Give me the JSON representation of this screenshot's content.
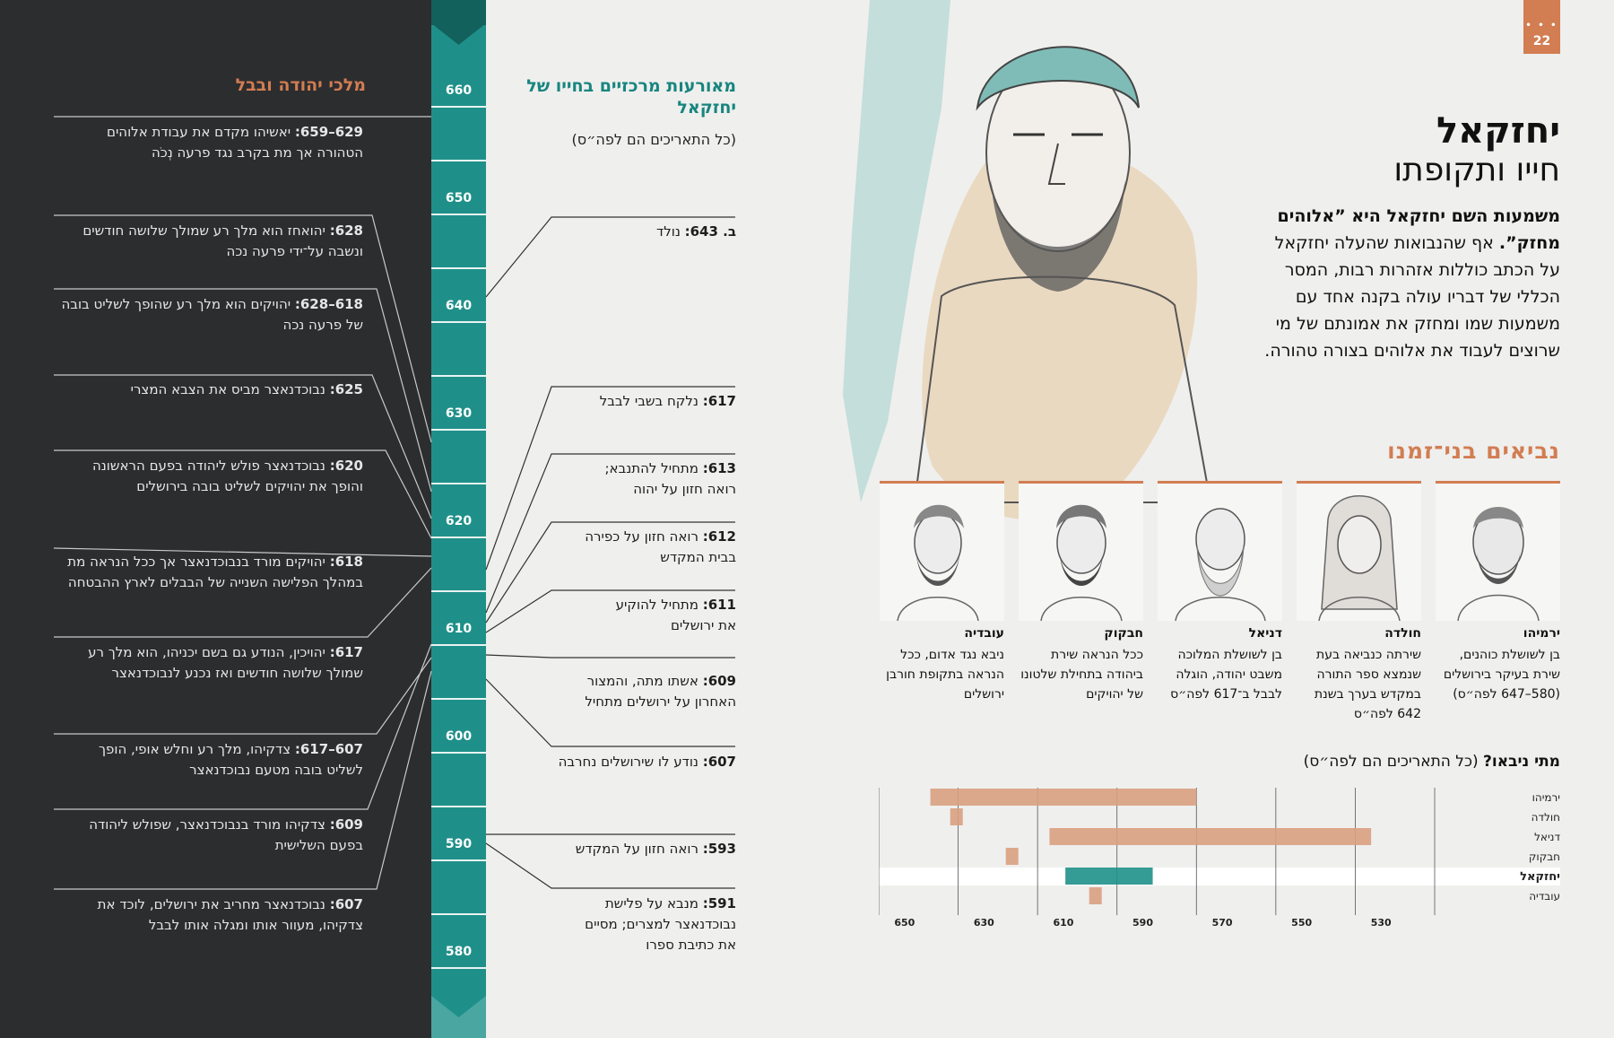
{
  "page_number": "22",
  "page_tab_dots": "• • •",
  "kings": {
    "title": "מלכי יהודה ובבל",
    "entries": [
      {
        "years": "629–659:",
        "text": " יאשיהו מקדם את עבודת אלוהים הטהורה אך מת בקרב נגד פרעה נְכֹה"
      },
      {
        "years": "628:",
        "text": " יהואחז הוא מלך רע שמולך שלושה חודשים ונשבה על־ידי פרעה נכה"
      },
      {
        "years": "618–628:",
        "text": " יהויקים הוא מלך רע שהופך לשליט בובה של פרעה נכה"
      },
      {
        "years": "625:",
        "text": " נבוכדנאצר מביס את הצבא המצרי"
      },
      {
        "years": "620:",
        "text": " נבוכדנאצר פולש ליהודה בפעם הראשונה והופך את יהויקים לשליט בובה בירושלים"
      },
      {
        "years": "618:",
        "text": " יהויקים מורד בנבוכדנאצר אך ככל הנראה מת במהלך הפלישה השנייה של הבבלים לארץ ההבטחה"
      },
      {
        "years": "617:",
        "text": " יהויכין, הנודע גם בשם יכניהו, הוא מלך רע שמולך שלושה חודשים ואז נכנע לנבוכדנאצר"
      },
      {
        "years": "607–617:",
        "text": " צדקיהו, מלך רע וחלש אופי, הופך לשליט בובה מטעם נבוכדנאצר"
      },
      {
        "years": "609:",
        "text": " צדקיהו מורד בנבוכדנאצר, שפולש ליהודה בפעם השלישית"
      },
      {
        "years": "607:",
        "text": " נבוכדנאצר מחריב את ירושלים, לוכד את צדקיהו, מעוור אותו ומגלה אותו לבבל"
      }
    ]
  },
  "timeline_ticks": [
    "660",
    "650",
    "640",
    "630",
    "620",
    "610",
    "600",
    "590",
    "580"
  ],
  "events": {
    "title": "מאורעות מרכזיים בחייו של יחזקאל",
    "note": "(כל התאריכים הם לפה״ס)",
    "entries": [
      {
        "years": "ב. 643:",
        "text": " נולד"
      },
      {
        "years": "617:",
        "text": " נלקח בשבי לבבל"
      },
      {
        "years": "613:",
        "text": " מתחיל להתנבא; רואה חזון על יהוה"
      },
      {
        "years": "612:",
        "text": " רואה חזון על כפירה בבית המקדש"
      },
      {
        "years": "611:",
        "text": " מתחיל להוקיע את ירושלים"
      },
      {
        "years": "609:",
        "text": " אשתו מתה, והמצור האחרון על ירושלים מתחיל"
      },
      {
        "years": "607:",
        "text": " נודע לו שירושלים נחרבה"
      },
      {
        "years": "593:",
        "text": " רואה חזון על המקדש"
      },
      {
        "years": "591:",
        "text": " מנבא על פלישת נבוכדנאצר למצרים; מסיים את כתיבת ספרו"
      }
    ]
  },
  "header": {
    "title": "יחזקאל",
    "subtitle": "חייו ותקופתו"
  },
  "intro": {
    "bold": "משמעות השם יחזקאל היא ”אלוהים מחזק”.",
    "text": " אף שהנבואות שהעלה יחזקאל על הכתב כוללות אזהרות רבות, המסר הכללי של דבריו עולה בקנה אחד עם משמעות שמו ומחזק את אמונתם של מי שרוצים לעבוד את אלוהים בצורה טהורה."
  },
  "prophets": {
    "title": "נביאים בני־זמנו",
    "cards": [
      {
        "name": "ירמיהו",
        "desc": "בן לשושלת כוהנים, שירת בעיקר בירושלים (580–647 לפה״ס)"
      },
      {
        "name": "חולדה",
        "desc": "שירתה כנביאה בעת שנמצא ספר התורה במקדש בערך בשנת 642 לפה״ס"
      },
      {
        "name": "דניאל",
        "desc": "בן לשושלת המלוכה משבט יהודה, הוגלה לבבל ב־617 לפה״ס"
      },
      {
        "name": "חבקוק",
        "desc": "ככל הנראה שירת ביהודה בתחילת שלטונו של יהויקים"
      },
      {
        "name": "עובדיה",
        "desc": "ניבא נגד אדום, ככל הנראה בתקופת חורבן ירושלים"
      }
    ]
  },
  "chart": {
    "title_bold": "מתי ניבאו?",
    "title_note": " (כל התאריכים הם לפה״ס)"
  },
  "chart_data": {
    "type": "bar",
    "orientation": "horizontal",
    "xlim": [
      660,
      520
    ],
    "xticks": [
      530,
      550,
      570,
      590,
      610,
      630,
      650
    ],
    "rows": [
      {
        "name": "ירמיהו",
        "start": 647,
        "end": 580,
        "highlight": false
      },
      {
        "name": "חולדה",
        "start": 642,
        "end": 642,
        "highlight": false
      },
      {
        "name": "דניאל",
        "start": 617,
        "end": 536,
        "highlight": false
      },
      {
        "name": "חבקוק",
        "start": 628,
        "end": 628,
        "highlight": false
      },
      {
        "name": "יחזקאל",
        "start": 613,
        "end": 591,
        "highlight": true
      },
      {
        "name": "עובדיה",
        "start": 607,
        "end": 607,
        "highlight": false
      }
    ],
    "colors": {
      "bar": "#d9a080",
      "highlight": "#1f9089",
      "grid": "#555555"
    }
  }
}
